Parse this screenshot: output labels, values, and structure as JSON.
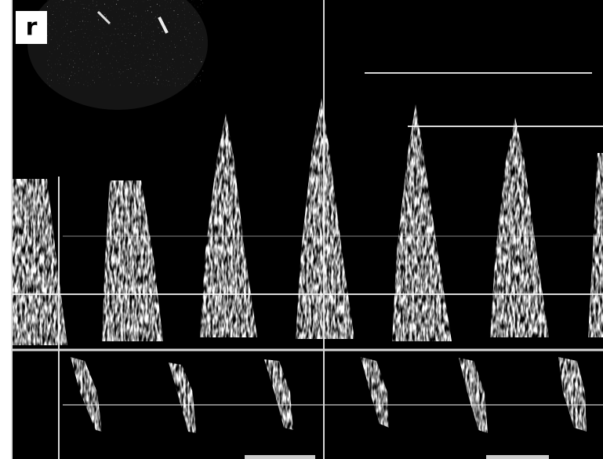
{
  "panel_label": "r"
}
